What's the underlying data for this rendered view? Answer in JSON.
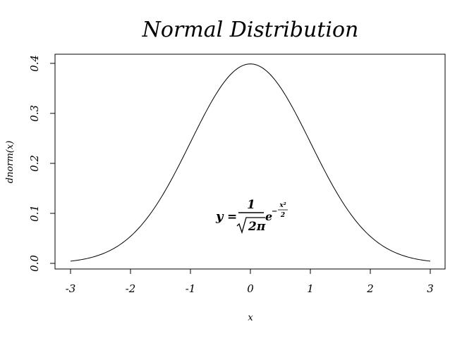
{
  "chart_data": {
    "type": "line",
    "title": "Normal Distribution",
    "xlabel": "x",
    "ylabel": "dnorm(x)",
    "xlim": [
      -3,
      3
    ],
    "ylim": [
      0,
      0.4
    ],
    "x_ticks": [
      -3,
      -2,
      -1,
      0,
      1,
      2,
      3
    ],
    "x_tick_labels": [
      "-3",
      "-2",
      "-1",
      "0",
      "1",
      "2",
      "3"
    ],
    "y_ticks": [
      0.0,
      0.1,
      0.2,
      0.3,
      0.4
    ],
    "y_tick_labels": [
      "0.0",
      "0.1",
      "0.2",
      "0.3",
      "0.4"
    ],
    "series": [
      {
        "name": "dnorm(x)",
        "x": [
          -3.0,
          -2.5,
          -2.0,
          -1.5,
          -1.0,
          -0.5,
          0.0,
          0.5,
          1.0,
          1.5,
          2.0,
          2.5,
          3.0
        ],
        "y": [
          0.0044,
          0.0175,
          0.054,
          0.1295,
          0.242,
          0.3521,
          0.3989,
          0.3521,
          0.242,
          0.1295,
          0.054,
          0.0175,
          0.0044
        ]
      }
    ],
    "annotation": {
      "y_var": "y",
      "equals": "=",
      "numerator": "1",
      "denominator": "2π",
      "exp_base": "e",
      "exp_sign": "−",
      "exp_numerator": "x²",
      "exp_denominator": "2",
      "x": 0,
      "y": 0.1
    }
  }
}
